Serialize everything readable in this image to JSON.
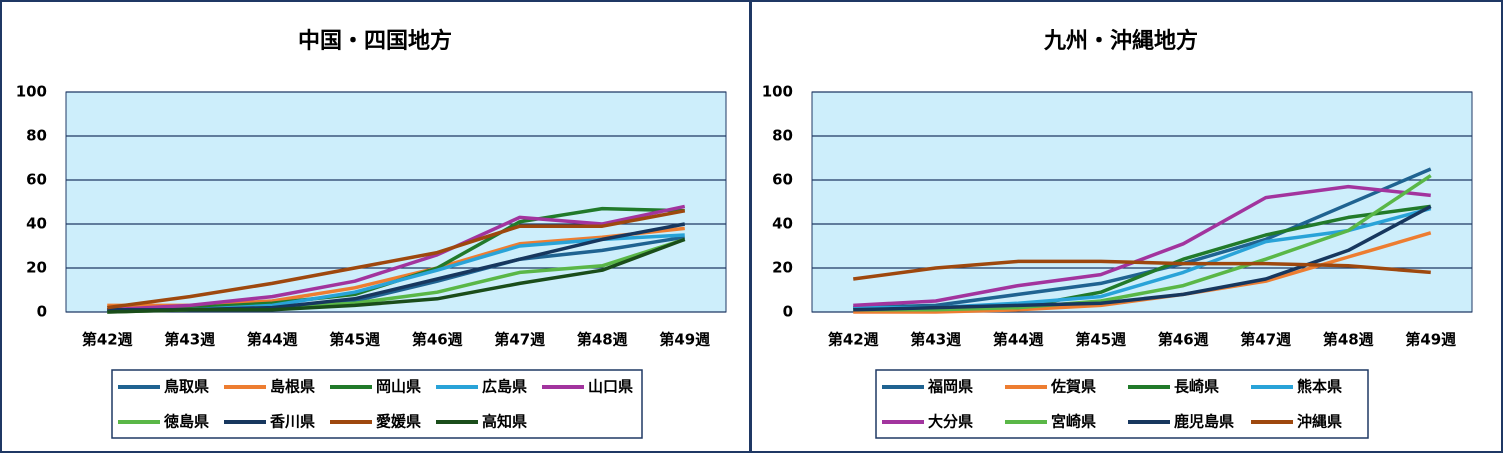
{
  "chart_data": [
    {
      "type": "line",
      "title": "中国・四国地方",
      "categories": [
        "第42週",
        "第43週",
        "第44週",
        "第45週",
        "第46週",
        "第47週",
        "第48週",
        "第49週"
      ],
      "ylim": [
        0,
        100
      ],
      "yticks": [
        0,
        20,
        40,
        60,
        80,
        100
      ],
      "grid": true,
      "series": [
        {
          "name": "鳥取県",
          "color": "#1f6391",
          "values": [
            1,
            1,
            2,
            5,
            14,
            24,
            28,
            34
          ]
        },
        {
          "name": "島根県",
          "color": "#ed7d31",
          "values": [
            3,
            3,
            5,
            11,
            20,
            31,
            34,
            38
          ]
        },
        {
          "name": "岡山県",
          "color": "#217a2a",
          "values": [
            1,
            2,
            4,
            8,
            20,
            41,
            47,
            46
          ]
        },
        {
          "name": "広島県",
          "color": "#29a3d8",
          "values": [
            1,
            1,
            3,
            9,
            19,
            30,
            33,
            35
          ]
        },
        {
          "name": "山口県",
          "color": "#a2349e",
          "values": [
            1,
            3,
            7,
            14,
            26,
            43,
            40,
            48
          ]
        },
        {
          "name": "徳島県",
          "color": "#5ab747",
          "values": [
            0,
            1,
            2,
            4,
            9,
            18,
            21,
            33
          ]
        },
        {
          "name": "香川県",
          "color": "#17375e",
          "values": [
            1,
            1,
            2,
            6,
            15,
            24,
            33,
            40
          ]
        },
        {
          "name": "愛媛県",
          "color": "#9e480e",
          "values": [
            2,
            7,
            13,
            20,
            27,
            39,
            39,
            46
          ]
        },
        {
          "name": "高知県",
          "color": "#1a4d1a",
          "values": [
            0,
            1,
            1,
            3,
            6,
            13,
            19,
            33
          ]
        }
      ]
    },
    {
      "type": "line",
      "title": "九州・沖縄地方",
      "categories": [
        "第42週",
        "第43週",
        "第44週",
        "第45週",
        "第46週",
        "第47週",
        "第48週",
        "第49週"
      ],
      "ylim": [
        0,
        100
      ],
      "yticks": [
        0,
        20,
        40,
        60,
        80,
        100
      ],
      "grid": true,
      "series": [
        {
          "name": "福岡県",
          "color": "#1f6391",
          "values": [
            2,
            3,
            8,
            13,
            22,
            33,
            49,
            65
          ]
        },
        {
          "name": "佐賀県",
          "color": "#ed7d31",
          "values": [
            0,
            0,
            1,
            3,
            8,
            14,
            25,
            36
          ]
        },
        {
          "name": "長崎県",
          "color": "#217a2a",
          "values": [
            2,
            2,
            2,
            9,
            24,
            35,
            43,
            48
          ]
        },
        {
          "name": "熊本県",
          "color": "#29a3d8",
          "values": [
            2,
            2,
            4,
            7,
            18,
            32,
            37,
            47
          ]
        },
        {
          "name": "大分県",
          "color": "#a2349e",
          "values": [
            3,
            5,
            12,
            17,
            31,
            52,
            57,
            53
          ]
        },
        {
          "name": "宮崎県",
          "color": "#5ab747",
          "values": [
            1,
            1,
            2,
            5,
            12,
            24,
            37,
            62
          ]
        },
        {
          "name": "鹿児島県",
          "color": "#17375e",
          "values": [
            1,
            2,
            3,
            4,
            8,
            15,
            28,
            48
          ]
        },
        {
          "name": "沖縄県",
          "color": "#9e480e",
          "values": [
            15,
            20,
            23,
            23,
            22,
            22,
            21,
            18
          ]
        }
      ]
    }
  ]
}
